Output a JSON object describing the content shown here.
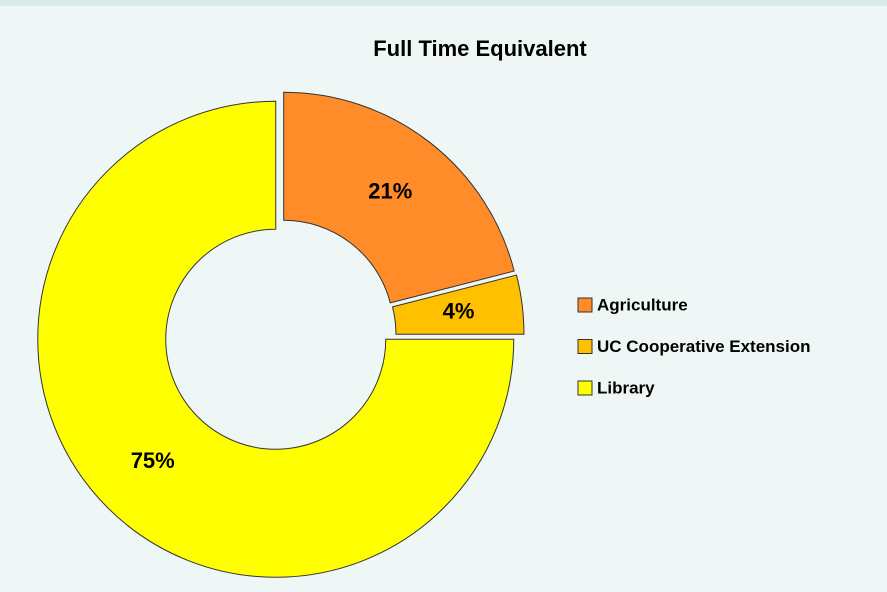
{
  "chart_data": {
    "type": "donut",
    "title": "Full Time Equivalent",
    "categories": [
      "Agriculture",
      "UC Cooperative Extension",
      "Library"
    ],
    "values": [
      21,
      4,
      75
    ],
    "value_labels": [
      "21%",
      "4%",
      "75%"
    ],
    "colors": [
      "#ff8c28",
      "#ffc000",
      "#ffff00"
    ],
    "legend": "right"
  }
}
